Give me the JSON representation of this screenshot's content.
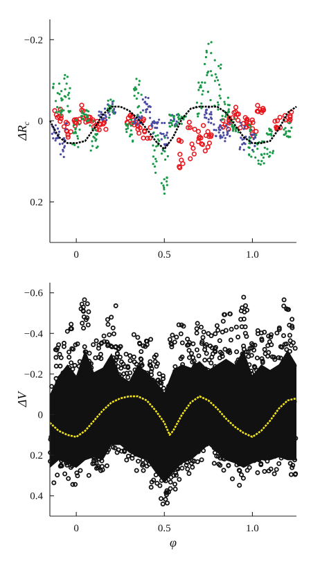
{
  "chart_data": [
    {
      "type": "scatter",
      "ylabel": "ΔR",
      "ylabel_sub": "c",
      "xlim": [
        -0.15,
        1.25
      ],
      "ylim": [
        -0.25,
        0.3
      ],
      "y_inverted": true,
      "x_ticks": [
        0,
        0.5,
        1.0
      ],
      "x_tick_labels": [
        "0",
        "0.5",
        "1.0"
      ],
      "y_ticks": [
        -0.2,
        0,
        0.2
      ],
      "y_tick_labels": [
        "−0.2",
        "0",
        "0.2"
      ],
      "grid": false,
      "colors": {
        "red": "#e8141b",
        "blue": "#4b4ba3",
        "green": "#1a9a48",
        "fit": "#000000"
      },
      "series": [
        {
          "color": "red",
          "marker": "circle-open",
          "x": [
            -0.1,
            -0.05,
            0.0,
            0.05,
            0.1,
            0.15,
            0.3,
            0.35,
            0.4,
            0.6,
            0.65,
            0.7,
            0.75,
            0.85,
            0.9,
            0.95,
            1.0,
            1.05,
            1.15,
            1.2
          ],
          "y": [
            -0.02,
            0.03,
            0.0,
            -0.03,
            0.01,
            0.02,
            -0.01,
            0.02,
            0.04,
            0.12,
            0.09,
            0.05,
            0.07,
            0.02,
            -0.03,
            0.01,
            0.03,
            -0.04,
            0.01,
            -0.02
          ]
        },
        {
          "color": "blue",
          "marker": "dot",
          "x": [
            -0.12,
            -0.08,
            0.15,
            0.2,
            0.35,
            0.4,
            0.45,
            0.5,
            0.55,
            0.75,
            0.8,
            0.85,
            0.95,
            1.0
          ],
          "y": [
            0.06,
            0.08,
            -0.02,
            -0.04,
            0.0,
            -0.06,
            0.02,
            0.07,
            0.0,
            -0.02,
            0.04,
            0.05,
            0.06,
            0.08
          ]
        },
        {
          "color": "green",
          "marker": "dot",
          "x": [
            -0.15,
            -0.1,
            -0.05,
            0.0,
            0.05,
            0.1,
            0.2,
            0.3,
            0.35,
            0.45,
            0.5,
            0.55,
            0.6,
            0.7,
            0.75,
            0.8,
            0.85,
            0.9,
            1.0,
            1.05,
            1.1,
            1.2
          ],
          "y": [
            -0.16,
            -0.08,
            -0.12,
            0.05,
            -0.02,
            0.06,
            -0.05,
            0.04,
            -0.1,
            0.12,
            0.19,
            0.0,
            -0.02,
            -0.1,
            -0.2,
            -0.15,
            -0.05,
            0.02,
            0.1,
            0.12,
            0.08,
            0.05
          ]
        },
        {
          "color": "fit",
          "marker": "line",
          "x": [
            -0.15,
            -0.1,
            -0.05,
            0.0,
            0.05,
            0.1,
            0.15,
            0.2,
            0.25,
            0.3,
            0.35,
            0.4,
            0.45,
            0.5,
            0.55,
            0.6,
            0.65,
            0.7,
            0.75,
            0.8,
            0.85,
            0.9,
            0.95,
            1.0,
            1.05,
            1.1,
            1.15,
            1.2,
            1.25
          ],
          "y": [
            0.0,
            0.04,
            0.055,
            0.055,
            0.05,
            0.02,
            -0.015,
            -0.035,
            -0.035,
            -0.025,
            -0.005,
            0.02,
            0.05,
            0.07,
            0.04,
            -0.005,
            -0.03,
            -0.035,
            -0.035,
            -0.035,
            -0.02,
            0.01,
            0.04,
            0.055,
            0.055,
            0.05,
            0.02,
            -0.02,
            -0.035
          ]
        }
      ]
    },
    {
      "type": "scatter",
      "ylabel": "ΔV",
      "xlabel": "φ",
      "xlim": [
        -0.15,
        1.25
      ],
      "ylim": [
        -0.65,
        0.5
      ],
      "y_inverted": true,
      "x_ticks": [
        0,
        0.5,
        1.0
      ],
      "x_tick_labels": [
        "0",
        "0.5",
        "1.0"
      ],
      "y_ticks": [
        -0.6,
        -0.4,
        -0.2,
        0,
        0.2,
        0.4
      ],
      "y_tick_labels": [
        "−0.6",
        "−0.4",
        "−0.2",
        "0",
        "0.2",
        "0.4"
      ],
      "grid": false,
      "colors": {
        "data": "#111111",
        "fit": "#f2e41c"
      },
      "series": [
        {
          "color": "data",
          "marker": "circle-open",
          "x": [
            -0.15,
            -0.1,
            -0.05,
            0.0,
            0.05,
            0.1,
            0.15,
            0.2,
            0.25,
            0.3,
            0.35,
            0.4,
            0.45,
            0.5,
            0.55,
            0.6,
            0.65,
            0.7,
            0.75,
            0.8,
            0.85,
            0.9,
            0.95,
            1.0,
            1.05,
            1.1,
            1.15,
            1.2,
            1.25
          ],
          "y_high": [
            -0.18,
            -0.35,
            -0.45,
            -0.35,
            -0.58,
            -0.38,
            -0.42,
            -0.55,
            -0.35,
            -0.3,
            -0.45,
            -0.38,
            -0.3,
            -0.2,
            -0.4,
            -0.45,
            -0.42,
            -0.48,
            -0.4,
            -0.45,
            -0.5,
            -0.45,
            -0.58,
            -0.35,
            -0.45,
            -0.4,
            -0.45,
            -0.58,
            -0.45
          ],
          "y_low": [
            0.35,
            0.3,
            0.32,
            0.35,
            0.3,
            0.28,
            0.3,
            0.2,
            0.2,
            0.25,
            0.28,
            0.3,
            0.38,
            0.45,
            0.38,
            0.32,
            0.3,
            0.25,
            0.2,
            0.25,
            0.3,
            0.32,
            0.35,
            0.32,
            0.3,
            0.3,
            0.28,
            0.3,
            0.3
          ]
        },
        {
          "color": "fit",
          "marker": "line",
          "x": [
            -0.15,
            -0.1,
            -0.05,
            0.0,
            0.05,
            0.1,
            0.15,
            0.2,
            0.25,
            0.3,
            0.35,
            0.4,
            0.45,
            0.5,
            0.53,
            0.55,
            0.6,
            0.65,
            0.7,
            0.75,
            0.8,
            0.85,
            0.9,
            0.95,
            1.0,
            1.05,
            1.1,
            1.15,
            1.2,
            1.25
          ],
          "y": [
            0.04,
            0.08,
            0.1,
            0.11,
            0.08,
            0.03,
            -0.02,
            -0.06,
            -0.08,
            -0.09,
            -0.09,
            -0.07,
            -0.02,
            0.04,
            0.1,
            0.08,
            0.0,
            -0.06,
            -0.09,
            -0.07,
            -0.03,
            0.02,
            0.06,
            0.09,
            0.11,
            0.08,
            0.03,
            -0.03,
            -0.07,
            -0.08
          ]
        }
      ]
    }
  ]
}
